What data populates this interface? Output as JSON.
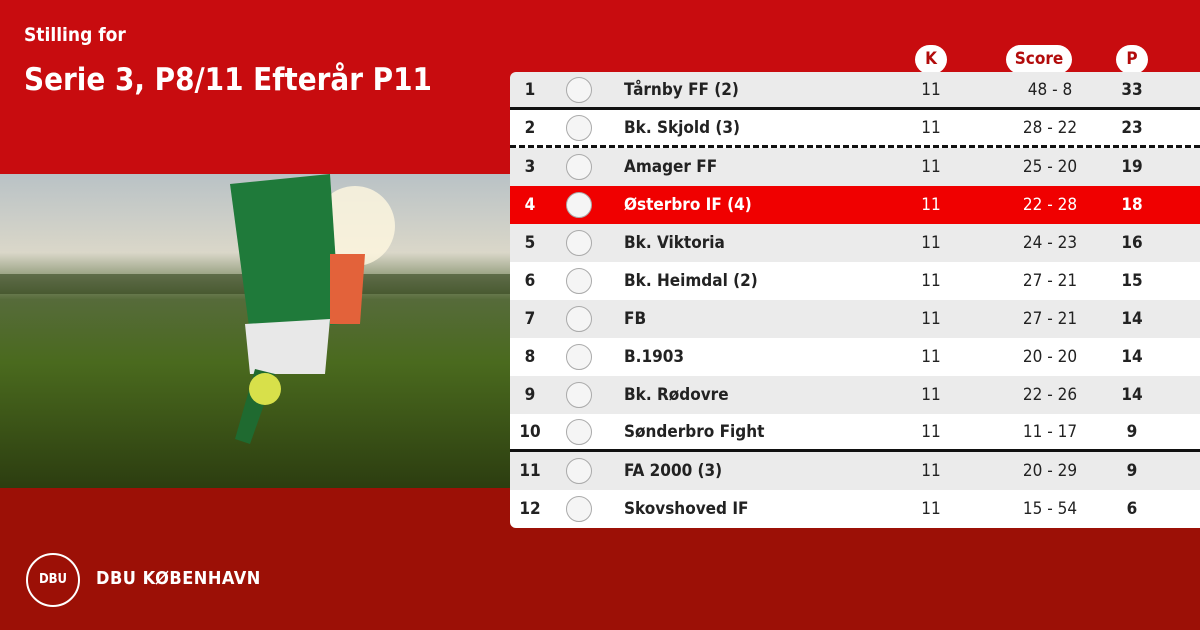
{
  "header": {
    "subtitle": "Stilling for",
    "title": "Serie 3, P8/11 Efterår P11"
  },
  "columns": {
    "k": "K",
    "score": "Score",
    "p": "P"
  },
  "colors": {
    "primary": "#c80c0f",
    "footer": "#9c1006",
    "highlight": "#f00000"
  },
  "rows": [
    {
      "pos": "1",
      "team": "Tårnby FF (2)",
      "k": "11",
      "score": "48 - 8",
      "p": "33"
    },
    {
      "pos": "2",
      "team": "Bk. Skjold (3)",
      "k": "11",
      "score": "28 - 22",
      "p": "23"
    },
    {
      "pos": "3",
      "team": "Amager FF",
      "k": "11",
      "score": "25 - 20",
      "p": "19"
    },
    {
      "pos": "4",
      "team": "Østerbro IF (4)",
      "k": "11",
      "score": "22 - 28",
      "p": "18"
    },
    {
      "pos": "5",
      "team": "Bk. Viktoria",
      "k": "11",
      "score": "24 - 23",
      "p": "16"
    },
    {
      "pos": "6",
      "team": "Bk. Heimdal (2)",
      "k": "11",
      "score": "27 - 21",
      "p": "15"
    },
    {
      "pos": "7",
      "team": "FB",
      "k": "11",
      "score": "27 - 21",
      "p": "14"
    },
    {
      "pos": "8",
      "team": "B.1903",
      "k": "11",
      "score": "20 - 20",
      "p": "14"
    },
    {
      "pos": "9",
      "team": "Bk. Rødovre",
      "k": "11",
      "score": "22 - 26",
      "p": "14"
    },
    {
      "pos": "10",
      "team": "Sønderbro Fight",
      "k": "11",
      "score": "11 - 17",
      "p": "9"
    },
    {
      "pos": "11",
      "team": "FA 2000 (3)",
      "k": "11",
      "score": "20 - 29",
      "p": "9"
    },
    {
      "pos": "12",
      "team": "Skovshoved IF",
      "k": "11",
      "score": "15 - 54",
      "p": "6"
    }
  ],
  "footer": {
    "logo_text": "DBU",
    "brand": "DBU KØBENHAVN"
  }
}
